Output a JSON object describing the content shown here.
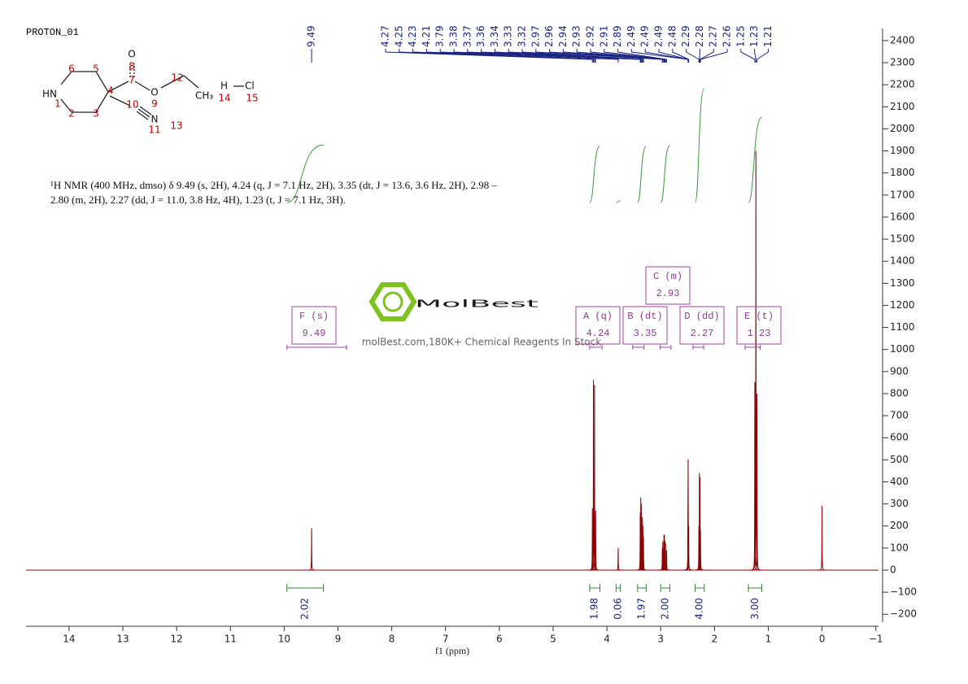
{
  "chart_data": {
    "type": "nmr",
    "title": "PROTON_01",
    "x_label": "f1 (ppm)",
    "xlim": [
      14.8,
      -1.05
    ],
    "xticks": [
      14,
      13,
      12,
      11,
      10,
      9,
      8,
      7,
      6,
      5,
      4,
      3,
      2,
      1,
      0,
      {
        "value": -1,
        "label": "−1"
      }
    ],
    "ylim": [
      -236,
      2455
    ],
    "yticks": [
      {
        "value": -200,
        "label": "−200"
      },
      {
        "value": -100,
        "label": "−100"
      },
      0,
      100,
      200,
      300,
      400,
      500,
      600,
      700,
      800,
      900,
      1000,
      1100,
      1200,
      1300,
      1400,
      1500,
      1600,
      1700,
      1800,
      1900,
      2000,
      2100,
      2200,
      2300,
      2400
    ],
    "color": "#8b0000",
    "peaks": {
      "x": [
        9.49,
        4.27,
        4.25,
        4.23,
        4.21,
        3.79,
        3.38,
        3.37,
        3.36,
        3.34,
        3.33,
        3.32,
        2.97,
        2.96,
        2.94,
        2.93,
        2.92,
        2.91,
        2.89,
        2.49,
        2.49,
        2.49,
        2.48,
        2.29,
        2.28,
        2.27,
        2.26,
        1.25,
        1.23,
        1.21
      ],
      "heights": [
        190,
        280,
        860,
        840,
        270,
        100,
        260,
        330,
        300,
        240,
        200,
        150,
        100,
        130,
        160,
        160,
        130,
        120,
        90,
        300,
        500,
        400,
        200,
        200,
        440,
        420,
        180,
        850,
        1900,
        800
      ]
    },
    "reference_peak": {
      "x": 0,
      "height": 290
    },
    "multiplets": [
      {
        "label": "F (s)",
        "shift": 9.49,
        "range": [
          9.95,
          8.84
        ]
      },
      {
        "label": "A (q)",
        "shift": 4.24,
        "range": [
          4.32,
          4.09
        ]
      },
      {
        "label": "B (dt)",
        "shift": 3.35,
        "range": [
          3.52,
          3.31
        ]
      },
      {
        "label": "C (m)",
        "shift": 2.93,
        "range": [
          3.01,
          2.81
        ]
      },
      {
        "label": "D (dd)",
        "shift": 2.27,
        "range": [
          2.4,
          2.2
        ]
      },
      {
        "label": "E (t)",
        "shift": 1.23,
        "range": [
          1.43,
          1.15
        ]
      }
    ],
    "integrals": {
      "values": [
        2.02,
        1.98,
        0.06,
        1.97,
        2,
        4,
        3
      ],
      "value_labels": [
        "2.02",
        "1.98",
        "0.06",
        "1.97",
        "2.00",
        "4.00",
        "3.00"
      ],
      "ranges": [
        [
          9.95,
          9.27
        ],
        [
          4.32,
          4.13
        ],
        [
          3.83,
          3.75
        ],
        [
          3.43,
          3.27
        ],
        [
          3.0,
          2.83
        ],
        [
          2.36,
          2.19
        ],
        [
          1.37,
          1.12
        ]
      ]
    },
    "description": "¹H NMR (400 MHz, dmso) δ 9.49 (s, 2H), 4.24 (q, J = 7.1 Hz, 2H), 3.35 (dt, J = 13.6, 3.6 Hz, 2H), 2.98 – 2.80 (m, 2H), 2.27 (dd, J = 11.0, 3.8 Hz, 4H), 1.23 (t, J = 7.1 Hz, 3H).",
    "structure": {
      "atoms": [
        "HN",
        "O",
        "O",
        "N",
        "CH₃",
        "H",
        "Cl"
      ],
      "numbers": [
        "1",
        "2",
        "3",
        "4",
        "5",
        "6",
        "7",
        "8",
        "9",
        "10",
        "11",
        "12",
        "13",
        "14",
        "15"
      ]
    },
    "watermark": {
      "brand": "MolBest",
      "tagline": "molBest.com,180K+ Chemical Reagents In Stock"
    }
  }
}
